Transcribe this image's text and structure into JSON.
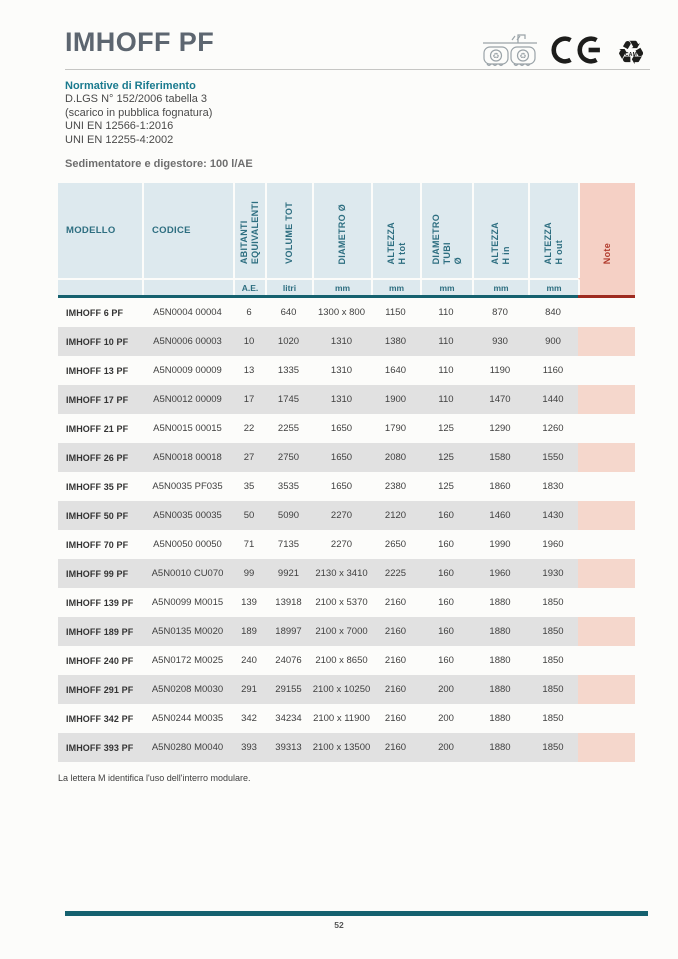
{
  "page": {
    "title": "IMHOFF PF",
    "page_number": "52",
    "footer_note": "La lettera M identifica l'uso dell'interro modulare."
  },
  "header_icons": {
    "recycle_glyph": "♻",
    "recycle_label": "CAM",
    "tank_glyph": "♻"
  },
  "normative": {
    "heading": "Normative di Riferimento",
    "lines": "D.LGS N° 152/2006 tabella 3\n(scarico in pubblica fognatura)\nUNI EN 12566-1:2016\nUNI EN 12255-4:2002"
  },
  "subtitle": "Sedimentatore e digestore: 100 l/AE",
  "colors": {
    "accent_teal": "#15616F",
    "header_blue": "#DDE9EE",
    "note_salmon": "#F5D0C5",
    "note_red": "#9E2B20",
    "row_gray": "#E1E1E1",
    "title_gray": "#5D6670"
  },
  "table": {
    "columns": [
      {
        "label": "MODELLO",
        "unit": ""
      },
      {
        "label": "CODICE",
        "unit": ""
      },
      {
        "label": "ABITANTI\nEQUIVALENTI",
        "unit": "A.E."
      },
      {
        "label": "VOLUME TOT",
        "unit": "litri"
      },
      {
        "label": "DIAMETRO Ø",
        "unit": "mm"
      },
      {
        "label": "ALTEZZA\nH tot",
        "unit": "mm"
      },
      {
        "label": "DIAMETRO\nTUBI\nØ",
        "unit": "mm"
      },
      {
        "label": "ALTEZZA\nH in",
        "unit": "mm"
      },
      {
        "label": "ALTEZZA\nH out",
        "unit": "mm"
      },
      {
        "label": "Note",
        "unit": ""
      }
    ],
    "rows": [
      {
        "model": "IMHOFF 6 PF",
        "code": "A5N0004 00004",
        "ae": "6",
        "vol": "640",
        "diam": "1300 x 800",
        "h_tot": "1150",
        "tubi": "110",
        "h_in": "870",
        "h_out": "840",
        "note": ""
      },
      {
        "model": "IMHOFF 10 PF",
        "code": "A5N0006 00003",
        "ae": "10",
        "vol": "1020",
        "diam": "1310",
        "h_tot": "1380",
        "tubi": "110",
        "h_in": "930",
        "h_out": "900",
        "note": ""
      },
      {
        "model": "IMHOFF 13 PF",
        "code": "A5N0009 00009",
        "ae": "13",
        "vol": "1335",
        "diam": "1310",
        "h_tot": "1640",
        "tubi": "110",
        "h_in": "1190",
        "h_out": "1160",
        "note": ""
      },
      {
        "model": "IMHOFF 17 PF",
        "code": "A5N0012 00009",
        "ae": "17",
        "vol": "1745",
        "diam": "1310",
        "h_tot": "1900",
        "tubi": "110",
        "h_in": "1470",
        "h_out": "1440",
        "note": ""
      },
      {
        "model": "IMHOFF 21 PF",
        "code": "A5N0015 00015",
        "ae": "22",
        "vol": "2255",
        "diam": "1650",
        "h_tot": "1790",
        "tubi": "125",
        "h_in": "1290",
        "h_out": "1260",
        "note": ""
      },
      {
        "model": "IMHOFF 26 PF",
        "code": "A5N0018 00018",
        "ae": "27",
        "vol": "2750",
        "diam": "1650",
        "h_tot": "2080",
        "tubi": "125",
        "h_in": "1580",
        "h_out": "1550",
        "note": ""
      },
      {
        "model": "IMHOFF 35 PF",
        "code": "A5N0035 PF035",
        "ae": "35",
        "vol": "3535",
        "diam": "1650",
        "h_tot": "2380",
        "tubi": "125",
        "h_in": "1860",
        "h_out": "1830",
        "note": ""
      },
      {
        "model": "IMHOFF 50 PF",
        "code": "A5N0035 00035",
        "ae": "50",
        "vol": "5090",
        "diam": "2270",
        "h_tot": "2120",
        "tubi": "160",
        "h_in": "1460",
        "h_out": "1430",
        "note": ""
      },
      {
        "model": "IMHOFF 70 PF",
        "code": "A5N0050 00050",
        "ae": "71",
        "vol": "7135",
        "diam": "2270",
        "h_tot": "2650",
        "tubi": "160",
        "h_in": "1990",
        "h_out": "1960",
        "note": ""
      },
      {
        "model": "IMHOFF 99 PF",
        "code": "A5N0010 CU070",
        "ae": "99",
        "vol": "9921",
        "diam": "2130 x 3410",
        "h_tot": "2225",
        "tubi": "160",
        "h_in": "1960",
        "h_out": "1930",
        "note": ""
      },
      {
        "model": "IMHOFF 139 PF",
        "code": "A5N0099 M0015",
        "ae": "139",
        "vol": "13918",
        "diam": "2100 x 5370",
        "h_tot": "2160",
        "tubi": "160",
        "h_in": "1880",
        "h_out": "1850",
        "note": ""
      },
      {
        "model": "IMHOFF 189 PF",
        "code": "A5N0135 M0020",
        "ae": "189",
        "vol": "18997",
        "diam": "2100 x 7000",
        "h_tot": "2160",
        "tubi": "160",
        "h_in": "1880",
        "h_out": "1850",
        "note": ""
      },
      {
        "model": "IMHOFF 240 PF",
        "code": "A5N0172 M0025",
        "ae": "240",
        "vol": "24076",
        "diam": "2100 x 8650",
        "h_tot": "2160",
        "tubi": "160",
        "h_in": "1880",
        "h_out": "1850",
        "note": ""
      },
      {
        "model": "IMHOFF 291 PF",
        "code": "A5N0208 M0030",
        "ae": "291",
        "vol": "29155",
        "diam": "2100 x 10250",
        "h_tot": "2160",
        "tubi": "200",
        "h_in": "1880",
        "h_out": "1850",
        "note": ""
      },
      {
        "model": "IMHOFF 342 PF",
        "code": "A5N0244 M0035",
        "ae": "342",
        "vol": "34234",
        "diam": "2100 x 11900",
        "h_tot": "2160",
        "tubi": "200",
        "h_in": "1880",
        "h_out": "1850",
        "note": ""
      },
      {
        "model": "IMHOFF 393 PF",
        "code": "A5N0280 M0040",
        "ae": "393",
        "vol": "39313",
        "diam": "2100 x 13500",
        "h_tot": "2160",
        "tubi": "200",
        "h_in": "1880",
        "h_out": "1850",
        "note": ""
      }
    ]
  }
}
